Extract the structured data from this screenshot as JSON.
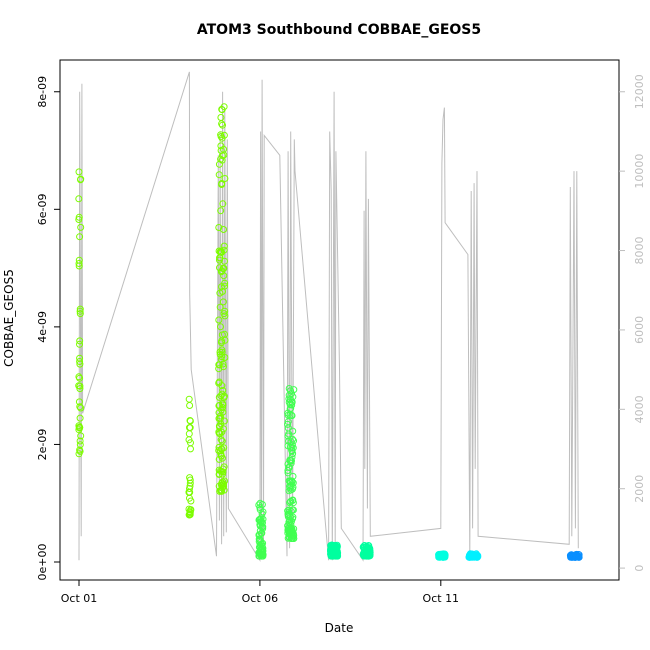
{
  "chart_data": {
    "type": "scatter",
    "title": "ATOM3 Southbound COBBAE_GEOS5",
    "xlabel": "Date",
    "ylabel": "COBBAE_GEOS5",
    "xlim_days": [
      0.0,
      14.4
    ],
    "ylim": [
      0,
      8.2e-09
    ],
    "x_ticks": [
      {
        "x": 0,
        "label": "Oct 01"
      },
      {
        "x": 5,
        "label": "Oct 06"
      },
      {
        "x": 10,
        "label": "Oct 11"
      }
    ],
    "y_ticks": [
      {
        "v": 0,
        "label": "0e+00"
      },
      {
        "v": 2e-09,
        "label": "2e-09"
      },
      {
        "v": 4e-09,
        "label": "4e-09"
      },
      {
        "v": 6e-09,
        "label": "6e-09"
      },
      {
        "v": 8e-09,
        "label": "8e-09"
      }
    ],
    "right_axis": {
      "range": [
        -300,
        12800
      ],
      "ticks": [
        0,
        2000,
        4000,
        6000,
        8000,
        10000,
        12000
      ],
      "color": "#bebebe"
    },
    "grid": false,
    "legend": "none",
    "point_clusters": [
      {
        "day": 0.02,
        "width": 0.06,
        "ymin": 1.8e-09,
        "ymax": 6.75e-09,
        "n": 40,
        "color": "#7cfc00"
      },
      {
        "day": 3.07,
        "width": 0.06,
        "ymin": 8e-10,
        "ymax": 2.8e-09,
        "n": 30,
        "color": "#7cfc00"
      },
      {
        "day": 3.95,
        "width": 0.18,
        "ymin": 1.2e-09,
        "ymax": 7.8e-09,
        "n": 140,
        "color": "#7cfc00"
      },
      {
        "day": 5.03,
        "width": 0.12,
        "ymin": 1e-10,
        "ymax": 1e-09,
        "n": 60,
        "color": "#40ff50"
      },
      {
        "day": 5.85,
        "width": 0.18,
        "ymin": 4e-10,
        "ymax": 3e-09,
        "n": 120,
        "color": "#40ff50"
      },
      {
        "day": 7.05,
        "width": 0.2,
        "ymin": 1e-10,
        "ymax": 3e-10,
        "n": 70,
        "color": "#00ff9f"
      },
      {
        "day": 7.95,
        "width": 0.2,
        "ymin": 1e-10,
        "ymax": 3e-10,
        "n": 70,
        "color": "#00ff9f"
      },
      {
        "day": 10.03,
        "width": 0.18,
        "ymin": 8e-11,
        "ymax": 1.4e-10,
        "n": 50,
        "color": "#00ffe0"
      },
      {
        "day": 10.9,
        "width": 0.25,
        "ymin": 8e-11,
        "ymax": 1.4e-10,
        "n": 60,
        "color": "#00f0ff"
      },
      {
        "day": 13.7,
        "width": 0.25,
        "ymin": 8e-11,
        "ymax": 1.3e-10,
        "n": 60,
        "color": "#0a8fff"
      }
    ],
    "altitude_line_color": "#bebebe",
    "altitude_segments": [
      {
        "day": 0.0,
        "alt": 200
      },
      {
        "day": 0.02,
        "alt": 12000
      },
      {
        "day": 0.06,
        "alt": 800
      },
      {
        "day": 0.08,
        "alt": 12200
      },
      {
        "day": 0.1,
        "alt": 3900
      },
      {
        "day": 3.05,
        "alt": 12500
      },
      {
        "day": 3.06,
        "alt": 6900
      },
      {
        "day": 3.1,
        "alt": 5000
      },
      {
        "day": 3.8,
        "alt": 300
      },
      {
        "day": 3.85,
        "alt": 10400
      },
      {
        "day": 3.88,
        "alt": 1200
      },
      {
        "day": 3.9,
        "alt": 11000
      },
      {
        "day": 3.94,
        "alt": 600
      },
      {
        "day": 3.97,
        "alt": 12000
      },
      {
        "day": 4.0,
        "alt": 800
      },
      {
        "day": 4.03,
        "alt": 11500
      },
      {
        "day": 4.07,
        "alt": 900
      },
      {
        "day": 4.1,
        "alt": 10800
      },
      {
        "day": 4.13,
        "alt": 1500
      },
      {
        "day": 5.0,
        "alt": 200
      },
      {
        "day": 5.02,
        "alt": 11000
      },
      {
        "day": 5.04,
        "alt": 400
      },
      {
        "day": 5.06,
        "alt": 12300
      },
      {
        "day": 5.1,
        "alt": 600
      },
      {
        "day": 5.12,
        "alt": 10900
      },
      {
        "day": 5.55,
        "alt": 10400
      },
      {
        "day": 5.75,
        "alt": 300
      },
      {
        "day": 5.78,
        "alt": 10500
      },
      {
        "day": 5.82,
        "alt": 500
      },
      {
        "day": 5.85,
        "alt": 11000
      },
      {
        "day": 5.9,
        "alt": 700
      },
      {
        "day": 5.95,
        "alt": 10800
      },
      {
        "day": 5.97,
        "alt": 10000
      },
      {
        "day": 6.9,
        "alt": 200
      },
      {
        "day": 6.93,
        "alt": 11000
      },
      {
        "day": 6.97,
        "alt": 9500
      },
      {
        "day": 7.0,
        "alt": 200
      },
      {
        "day": 7.05,
        "alt": 12000
      },
      {
        "day": 7.08,
        "alt": 400
      },
      {
        "day": 7.1,
        "alt": 10500
      },
      {
        "day": 7.2,
        "alt": 5000
      },
      {
        "day": 7.25,
        "alt": 1000
      },
      {
        "day": 7.85,
        "alt": 200
      },
      {
        "day": 7.88,
        "alt": 9000
      },
      {
        "day": 7.9,
        "alt": 2500
      },
      {
        "day": 7.93,
        "alt": 10500
      },
      {
        "day": 7.97,
        "alt": 1500
      },
      {
        "day": 8.0,
        "alt": 9300
      },
      {
        "day": 8.05,
        "alt": 800
      },
      {
        "day": 10.0,
        "alt": 1000
      },
      {
        "day": 10.03,
        "alt": 10200
      },
      {
        "day": 10.06,
        "alt": 11300
      },
      {
        "day": 10.1,
        "alt": 11600
      },
      {
        "day": 10.12,
        "alt": 8700
      },
      {
        "day": 10.75,
        "alt": 7900
      },
      {
        "day": 10.8,
        "alt": 300
      },
      {
        "day": 10.84,
        "alt": 9500
      },
      {
        "day": 10.88,
        "alt": 1000
      },
      {
        "day": 10.92,
        "alt": 9700
      },
      {
        "day": 10.95,
        "alt": 2500
      },
      {
        "day": 11.0,
        "alt": 10000
      },
      {
        "day": 11.03,
        "alt": 800
      },
      {
        "day": 13.55,
        "alt": 600
      },
      {
        "day": 13.58,
        "alt": 9600
      },
      {
        "day": 13.62,
        "alt": 800
      },
      {
        "day": 13.68,
        "alt": 10000
      },
      {
        "day": 13.72,
        "alt": 1000
      },
      {
        "day": 13.76,
        "alt": 10000
      },
      {
        "day": 13.8,
        "alt": 500
      }
    ]
  }
}
